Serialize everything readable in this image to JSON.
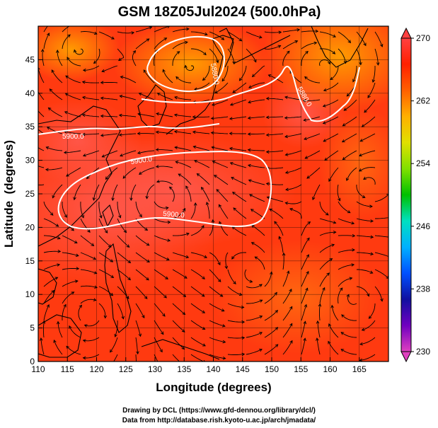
{
  "chart_data": {
    "type": "heatmap",
    "title": "GSM 18Z05Jul2024 (500.0hPa)",
    "xlabel": "Longitude (degrees)",
    "ylabel": "Latitude  (degrees)",
    "xlim": [
      110,
      170
    ],
    "ylim": [
      0,
      50
    ],
    "x_ticks": [
      110,
      115,
      120,
      125,
      130,
      135,
      140,
      145,
      150,
      155,
      160,
      165
    ],
    "y_ticks": [
      0,
      5,
      10,
      15,
      20,
      25,
      30,
      35,
      40,
      45
    ],
    "grid": true,
    "colorbar": {
      "min": 230,
      "max": 270,
      "ticks": [
        230,
        238,
        246,
        254,
        262,
        270
      ],
      "colors": [
        "#e040c0",
        "#7000c0",
        "#1010a0",
        "#0050ff",
        "#00b0ff",
        "#00e0c0",
        "#00c000",
        "#80e000",
        "#e0e000",
        "#ffb000",
        "#ff6000",
        "#ff2000",
        "#ff4040"
      ]
    },
    "contour_labels": [
      "5880.0",
      "5900.0",
      "5900.0",
      "5900.0",
      "5880.0"
    ],
    "field_colors": {
      "warm": "#ff3a10",
      "hot": "#ff5a40",
      "cool": "#ffa000"
    }
  },
  "credits": {
    "line1": "Drawing by DCL (https://www.gfd-dennou.org/library/dcl/)",
    "line2": "Data from http://database.rish.kyoto-u.ac.jp/arch/jmadata/"
  }
}
